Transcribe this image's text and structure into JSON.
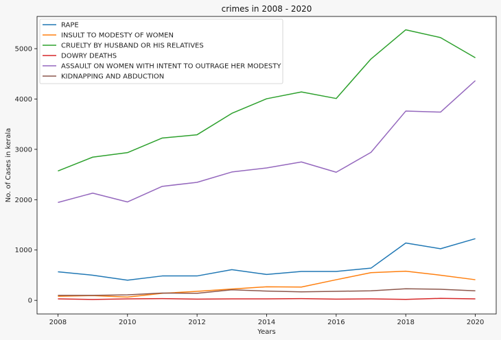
{
  "chart_data": {
    "type": "line",
    "title": "crimes in 2008 - 2020",
    "xlabel": "Years",
    "ylabel": "No. of Cases in kerala",
    "x": [
      2008,
      2009,
      2010,
      2011,
      2012,
      2013,
      2014,
      2015,
      2016,
      2017,
      2018,
      2019,
      2020
    ],
    "xticks": [
      2008,
      2010,
      2012,
      2014,
      2016,
      2018,
      2020
    ],
    "yticks": [
      0,
      1000,
      2000,
      3000,
      4000,
      5000
    ],
    "xlim": [
      2007.4,
      2020.6
    ],
    "ylim": [
      -270,
      5640
    ],
    "grid": false,
    "legend": "top-left",
    "series": [
      {
        "name": "RAPE",
        "color": "#1f77b4",
        "values": [
          568,
          500,
          400,
          485,
          485,
          610,
          515,
          575,
          575,
          640,
          1140,
          1025,
          1225
        ]
      },
      {
        "name": "INSULT TO MODESTY OF WOMEN",
        "color": "#ff7f0e",
        "values": [
          80,
          95,
          65,
          140,
          180,
          225,
          270,
          265,
          410,
          550,
          580,
          500,
          410
        ]
      },
      {
        "name": "CRUELTY BY HUSBAND OR HIS RELATIVES",
        "color": "#2ca02c",
        "values": [
          2570,
          2845,
          2935,
          3225,
          3290,
          3715,
          4005,
          4140,
          4010,
          4795,
          5375,
          5220,
          4820
        ]
      },
      {
        "name": "DOWRY DEATHS",
        "color": "#d62728",
        "values": [
          30,
          18,
          30,
          35,
          25,
          30,
          30,
          35,
          25,
          30,
          20,
          40,
          30
        ]
      },
      {
        "name": "ASSAULT ON WOMEN WITH INTENT TO OUTRAGE HER MODESTY",
        "color": "#9467bd",
        "values": [
          1945,
          2130,
          1955,
          2265,
          2345,
          2550,
          2630,
          2750,
          2545,
          2940,
          3760,
          3740,
          4365
        ]
      },
      {
        "name": "KIDNAPPING AND ABDUCTION",
        "color": "#8c564b",
        "values": [
          100,
          100,
          110,
          145,
          140,
          210,
          185,
          170,
          180,
          190,
          230,
          220,
          190
        ]
      }
    ]
  }
}
